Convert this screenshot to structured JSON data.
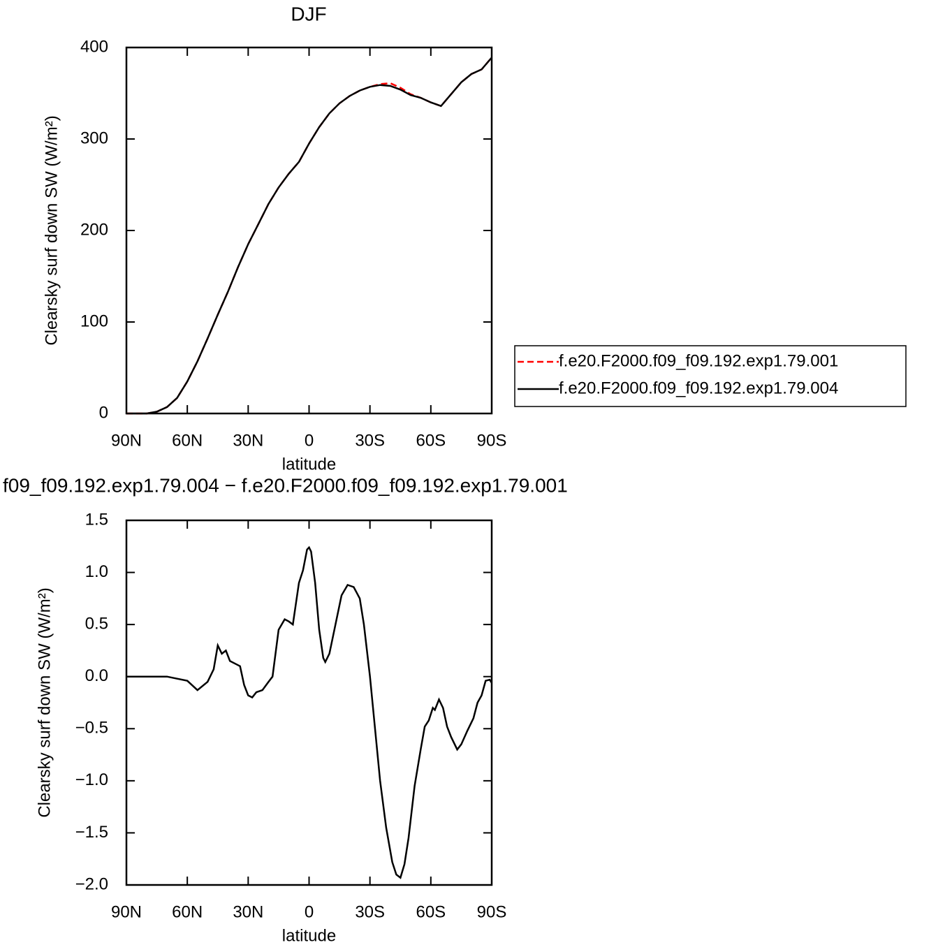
{
  "chart_data": [
    {
      "type": "line",
      "title": "DJF",
      "xlabel": "latitude",
      "ylabel": "Clearsky surf down SW (W/m²)",
      "xlim": [
        90,
        -90
      ],
      "ylim": [
        0,
        400
      ],
      "xticks": [
        {
          "value": 90,
          "label": "90N"
        },
        {
          "value": 60,
          "label": "60N"
        },
        {
          "value": 30,
          "label": "30N"
        },
        0,
        {
          "value": -30,
          "label": "30S"
        },
        {
          "value": -60,
          "label": "60S"
        },
        {
          "value": -90,
          "label": "90S"
        }
      ],
      "yticks": [
        0,
        100,
        200,
        300,
        400
      ],
      "legend_position": "right",
      "x": [
        90,
        85,
        80,
        75,
        70,
        65,
        60,
        55,
        50,
        45,
        40,
        35,
        30,
        25,
        20,
        15,
        10,
        5,
        0,
        -5,
        -10,
        -15,
        -20,
        -25,
        -30,
        -35,
        -40,
        -45,
        -50,
        -55,
        -60,
        -65,
        -70,
        -75,
        -80,
        -85,
        -90
      ],
      "series": [
        {
          "name": "f.e20.F2000.f09_f09.192.exp1.79.001",
          "color": "#ff0000",
          "line_style": "dashed",
          "values": [
            0,
            0,
            0,
            2,
            7,
            17,
            35,
            57,
            82,
            108,
            133,
            160,
            185,
            207,
            229,
            247,
            262,
            275,
            295,
            313,
            328,
            339,
            347,
            353,
            357,
            360,
            361,
            356,
            349,
            345,
            340,
            336,
            349,
            362,
            371,
            376,
            389
          ]
        },
        {
          "name": "f.e20.F2000.f09_f09.192.exp1.79.004",
          "color": "#000000",
          "line_style": "solid",
          "values": [
            0,
            0,
            0,
            2,
            7,
            17,
            35,
            57,
            82,
            108,
            133,
            160,
            185,
            207,
            229,
            247,
            262,
            275,
            295,
            313,
            328,
            339,
            347,
            353,
            357,
            359,
            358,
            354,
            348,
            345,
            340,
            336,
            349,
            362,
            371,
            376,
            389
          ]
        }
      ]
    },
    {
      "type": "line",
      "title": "f09_f09.192.exp1.79.004 − f.e20.F2000.f09_f09.192.exp1.79.001",
      "xlabel": "latitude",
      "ylabel": "Clearsky surf down SW (W/m²)",
      "xlim": [
        90,
        -90
      ],
      "ylim": [
        -2.0,
        1.5
      ],
      "xticks": [
        {
          "value": 90,
          "label": "90N"
        },
        {
          "value": 60,
          "label": "60N"
        },
        {
          "value": 30,
          "label": "30N"
        },
        0,
        {
          "value": -30,
          "label": "30S"
        },
        {
          "value": -60,
          "label": "60S"
        },
        {
          "value": -90,
          "label": "90S"
        }
      ],
      "yticks": [
        {
          "value": -2.0,
          "label": "−2.0"
        },
        {
          "value": -1.5,
          "label": "−1.5"
        },
        {
          "value": -1.0,
          "label": "−1.0"
        },
        {
          "value": -0.5,
          "label": "−0.5"
        },
        {
          "value": 0,
          "label": "0.0"
        },
        0.5,
        {
          "value": 1.0,
          "label": "1.0"
        },
        1.5
      ],
      "color": "#000000",
      "x": [
        90,
        80,
        70,
        65,
        60,
        55,
        50,
        47,
        45,
        43,
        41,
        39,
        36,
        34,
        32,
        30,
        28,
        26,
        23,
        20,
        18,
        15,
        12,
        10,
        8,
        5,
        3,
        1,
        0,
        -1,
        -3,
        -5,
        -7,
        -8,
        -10,
        -13,
        -16,
        -19,
        -22,
        -25,
        -27,
        -30,
        -33,
        -35,
        -38,
        -41,
        -43,
        -45,
        -47,
        -49,
        -52,
        -55,
        -57,
        -59,
        -61,
        -62,
        -64,
        -66,
        -68,
        -70,
        -73,
        -75,
        -78,
        -81,
        -83,
        -85,
        -87,
        -89,
        -90
      ],
      "values": [
        0,
        0,
        0,
        -0.02,
        -0.04,
        -0.13,
        -0.05,
        0.07,
        0.3,
        0.22,
        0.25,
        0.15,
        0.12,
        0.1,
        -0.08,
        -0.18,
        -0.2,
        -0.15,
        -0.13,
        -0.05,
        0.0,
        0.45,
        0.55,
        0.53,
        0.5,
        0.9,
        1.02,
        1.22,
        1.24,
        1.2,
        0.9,
        0.45,
        0.18,
        0.14,
        0.22,
        0.5,
        0.78,
        0.88,
        0.86,
        0.75,
        0.5,
        0.0,
        -0.6,
        -1.0,
        -1.45,
        -1.78,
        -1.9,
        -1.93,
        -1.8,
        -1.55,
        -1.05,
        -0.7,
        -0.48,
        -0.42,
        -0.3,
        -0.32,
        -0.22,
        -0.3,
        -0.48,
        -0.58,
        -0.7,
        -0.65,
        -0.52,
        -0.4,
        -0.25,
        -0.18,
        -0.04,
        -0.03,
        -0.06
      ]
    }
  ]
}
